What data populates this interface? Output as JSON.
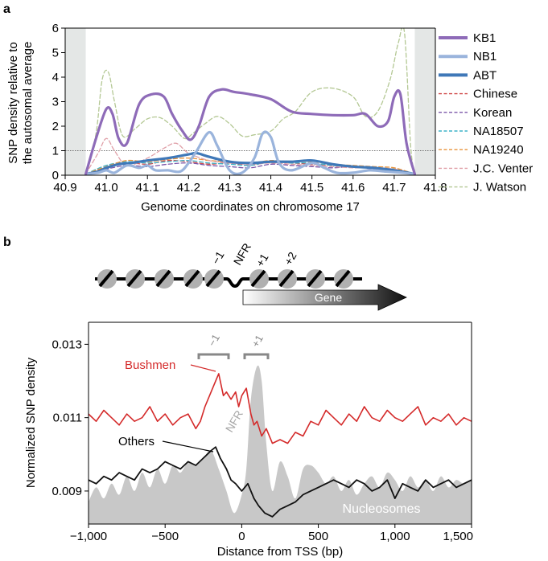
{
  "chart_data": [
    {
      "panel_label": "a",
      "type": "line",
      "xlabel": "Genome coordinates on chromosome 17",
      "ylabel_lines": [
        "SNP density relative to",
        "the autosomal average"
      ],
      "xlim": [
        40.9,
        41.8
      ],
      "ylim": [
        0,
        6
      ],
      "x_ticks": [
        "40.9",
        "41.0",
        "41.1",
        "41.2",
        "41.3",
        "41.4",
        "41.5",
        "41.6",
        "41.7",
        "41.8"
      ],
      "y_ticks": [
        "0",
        "1",
        "2",
        "3",
        "4",
        "5",
        "6"
      ],
      "reference_line": 1,
      "shaded_regions": [
        [
          40.9,
          40.95
        ],
        [
          41.75,
          41.8
        ]
      ],
      "legend_position": "right",
      "series": [
        {
          "name": "KB1",
          "color": "#8e6bb8",
          "style": "solid",
          "width": 3.2,
          "x": [
            40.95,
            40.975,
            41.0,
            41.015,
            41.03,
            41.05,
            41.08,
            41.11,
            41.14,
            41.16,
            41.185,
            41.205,
            41.225,
            41.25,
            41.28,
            41.31,
            41.35,
            41.4,
            41.45,
            41.5,
            41.55,
            41.6,
            41.63,
            41.66,
            41.685,
            41.7,
            41.715,
            41.73,
            41.75
          ],
          "y": [
            0.05,
            1.5,
            2.7,
            2.5,
            1.5,
            1.3,
            2.9,
            3.3,
            3.2,
            2.5,
            1.8,
            1.45,
            2.0,
            3.2,
            3.5,
            3.4,
            3.3,
            3.1,
            2.6,
            2.5,
            2.45,
            2.45,
            2.5,
            2.0,
            2.2,
            3.2,
            3.3,
            1.3,
            0.05
          ]
        },
        {
          "name": "NB1",
          "color": "#9ab4dc",
          "style": "solid",
          "width": 3.2,
          "x": [
            40.95,
            40.98,
            41.0,
            41.02,
            41.05,
            41.08,
            41.1,
            41.12,
            41.15,
            41.18,
            41.2,
            41.22,
            41.25,
            41.27,
            41.3,
            41.33,
            41.36,
            41.38,
            41.4,
            41.42,
            41.45,
            41.5,
            41.53,
            41.56,
            41.6,
            41.64,
            41.68,
            41.72,
            41.75
          ],
          "y": [
            0.05,
            0.1,
            0.2,
            0.1,
            0.4,
            0.3,
            0.4,
            0.2,
            0.2,
            0.15,
            0.5,
            1.0,
            1.75,
            1.2,
            0.2,
            0.1,
            0.7,
            1.7,
            1.55,
            0.5,
            0.2,
            0.5,
            0.3,
            0.1,
            0.1,
            0.2,
            0.15,
            0.1,
            0.05
          ]
        },
        {
          "name": "ABT",
          "color": "#3f78b8",
          "style": "solid",
          "width": 3.2,
          "x": [
            40.95,
            40.98,
            41.0,
            41.03,
            41.06,
            41.1,
            41.15,
            41.2,
            41.22,
            41.25,
            41.3,
            41.35,
            41.4,
            41.45,
            41.5,
            41.55,
            41.6,
            41.65,
            41.7,
            41.75
          ],
          "y": [
            0.05,
            0.15,
            0.3,
            0.45,
            0.5,
            0.6,
            0.7,
            0.85,
            0.9,
            0.75,
            0.55,
            0.5,
            0.55,
            0.55,
            0.6,
            0.45,
            0.35,
            0.3,
            0.2,
            0.05
          ]
        },
        {
          "name": "Chinese",
          "color": "#d04a4a",
          "style": "dashed",
          "width": 1.3,
          "x": [
            40.95,
            41.0,
            41.05,
            41.1,
            41.15,
            41.2,
            41.25,
            41.3,
            41.35,
            41.4,
            41.45,
            41.5,
            41.55,
            41.6,
            41.65,
            41.7,
            41.75
          ],
          "y": [
            0.05,
            0.3,
            0.5,
            0.45,
            0.6,
            0.55,
            0.45,
            0.5,
            0.4,
            0.55,
            0.5,
            0.45,
            0.4,
            0.35,
            0.3,
            0.25,
            0.05
          ]
        },
        {
          "name": "Korean",
          "color": "#7a55a8",
          "style": "dashed",
          "width": 1.3,
          "x": [
            40.95,
            41.0,
            41.05,
            41.1,
            41.15,
            41.2,
            41.25,
            41.3,
            41.35,
            41.4,
            41.45,
            41.5,
            41.55,
            41.6,
            41.65,
            41.7,
            41.75
          ],
          "y": [
            0.05,
            0.25,
            0.4,
            0.35,
            0.45,
            0.5,
            0.4,
            0.35,
            0.3,
            0.45,
            0.4,
            0.35,
            0.3,
            0.35,
            0.25,
            0.2,
            0.05
          ]
        },
        {
          "name": "NA18507",
          "color": "#3fb4c8",
          "style": "dashed",
          "width": 1.3,
          "x": [
            40.95,
            41.0,
            41.05,
            41.1,
            41.15,
            41.2,
            41.25,
            41.3,
            41.35,
            41.4,
            41.45,
            41.5,
            41.55,
            41.6,
            41.65,
            41.7,
            41.75
          ],
          "y": [
            0.05,
            0.4,
            0.55,
            0.5,
            0.55,
            0.6,
            0.5,
            0.45,
            0.4,
            0.55,
            0.5,
            0.5,
            0.4,
            0.35,
            0.3,
            0.25,
            0.05
          ]
        },
        {
          "name": "NA19240",
          "color": "#e8923a",
          "style": "dashed",
          "width": 1.3,
          "x": [
            40.95,
            41.0,
            41.05,
            41.1,
            41.15,
            41.2,
            41.25,
            41.3,
            41.35,
            41.4,
            41.45,
            41.5,
            41.55,
            41.6,
            41.65,
            41.7,
            41.75
          ],
          "y": [
            0.05,
            0.35,
            0.6,
            0.55,
            0.65,
            0.7,
            0.6,
            0.55,
            0.5,
            0.6,
            0.55,
            0.55,
            0.45,
            0.4,
            0.35,
            0.3,
            0.05
          ]
        },
        {
          "name": "J.C. Venter",
          "color": "#e0a0a8",
          "style": "dashed",
          "width": 1.3,
          "x": [
            40.95,
            40.98,
            41.0,
            41.02,
            41.05,
            41.1,
            41.14,
            41.17,
            41.2,
            41.25,
            41.3,
            41.35,
            41.4,
            41.45,
            41.5,
            41.55,
            41.6,
            41.65,
            41.7,
            41.75
          ],
          "y": [
            0.05,
            0.9,
            1.5,
            1.0,
            0.4,
            0.7,
            1.1,
            1.3,
            0.9,
            0.6,
            0.5,
            0.45,
            0.5,
            0.45,
            0.4,
            0.35,
            0.3,
            0.3,
            0.25,
            0.05
          ]
        },
        {
          "name": "J. Watson",
          "color": "#b4c894",
          "style": "dashed",
          "width": 1.3,
          "x": [
            40.95,
            40.975,
            40.99,
            41.005,
            41.02,
            41.04,
            41.07,
            41.1,
            41.13,
            41.16,
            41.19,
            41.21,
            41.24,
            41.27,
            41.3,
            41.33,
            41.36,
            41.4,
            41.43,
            41.46,
            41.5,
            41.55,
            41.6,
            41.63,
            41.66,
            41.69,
            41.71,
            41.725,
            41.74,
            41.75
          ],
          "y": [
            0.05,
            1.7,
            3.9,
            4.2,
            3.0,
            1.6,
            1.9,
            2.3,
            2.35,
            2.0,
            1.5,
            1.7,
            2.1,
            2.4,
            2.1,
            1.6,
            1.65,
            1.8,
            2.3,
            2.6,
            3.4,
            3.55,
            3.2,
            2.4,
            2.6,
            3.9,
            5.4,
            5.8,
            1.2,
            0.05
          ]
        }
      ]
    },
    {
      "panel_label": "b",
      "type": "line",
      "xlabel": "Distance from TSS (bp)",
      "ylabel": "Normalized SNP density",
      "xlim": [
        -1000,
        1500
      ],
      "ylim": [
        0.0081,
        0.0136
      ],
      "x_ticks": [
        "−1,000",
        "−500",
        "0",
        "500",
        "1,000",
        "1,500"
      ],
      "x_tick_values": [
        -1000,
        -500,
        0,
        500,
        1000,
        1500
      ],
      "y_ticks": [
        "0.009",
        "0.011",
        "0.013"
      ],
      "y_tick_values": [
        0.009,
        0.011,
        0.013
      ],
      "background_area": {
        "name": "Nucleosomes",
        "color": "#c8c8c8",
        "x": [
          -1000,
          -950,
          -900,
          -850,
          -800,
          -750,
          -700,
          -650,
          -600,
          -550,
          -500,
          -450,
          -400,
          -350,
          -300,
          -250,
          -200,
          -150,
          -100,
          -50,
          0,
          30,
          60,
          100,
          130,
          160,
          200,
          250,
          300,
          350,
          400,
          450,
          500,
          550,
          600,
          650,
          700,
          750,
          800,
          850,
          900,
          950,
          1000,
          1050,
          1100,
          1150,
          1200,
          1250,
          1300,
          1350,
          1400,
          1450,
          1500
        ],
        "y": [
          0.0087,
          0.0091,
          0.0088,
          0.0092,
          0.0089,
          0.0094,
          0.009,
          0.0095,
          0.0091,
          0.0096,
          0.0092,
          0.0097,
          0.0095,
          0.0098,
          0.0097,
          0.0099,
          0.0101,
          0.0096,
          0.009,
          0.0084,
          0.0089,
          0.0096,
          0.0115,
          0.0124,
          0.012,
          0.0103,
          0.009,
          0.0098,
          0.0094,
          0.0088,
          0.0096,
          0.0097,
          0.0095,
          0.0092,
          0.0094,
          0.009,
          0.0093,
          0.0089,
          0.0092,
          0.0094,
          0.0091,
          0.0095,
          0.0093,
          0.009,
          0.0094,
          0.0091,
          0.0093,
          0.009,
          0.0094,
          0.0091,
          0.0093,
          0.0092,
          0.0093
        ]
      },
      "series": [
        {
          "name": "Bushmen",
          "color": "#d42a2a",
          "width": 1.6,
          "x": [
            -1000,
            -950,
            -900,
            -850,
            -800,
            -750,
            -700,
            -650,
            -600,
            -550,
            -500,
            -450,
            -400,
            -350,
            -300,
            -270,
            -240,
            -200,
            -180,
            -150,
            -120,
            -100,
            -70,
            -40,
            -20,
            0,
            30,
            60,
            80,
            100,
            130,
            160,
            200,
            250,
            300,
            350,
            400,
            450,
            500,
            550,
            600,
            650,
            700,
            750,
            800,
            850,
            900,
            950,
            1000,
            1050,
            1100,
            1150,
            1200,
            1250,
            1300,
            1350,
            1400,
            1450,
            1500
          ],
          "y": [
            0.0111,
            0.0109,
            0.0112,
            0.011,
            0.0108,
            0.0111,
            0.0109,
            0.011,
            0.0113,
            0.0109,
            0.0111,
            0.0108,
            0.011,
            0.0111,
            0.0107,
            0.0109,
            0.0113,
            0.0117,
            0.0119,
            0.0122,
            0.0116,
            0.0117,
            0.0115,
            0.0117,
            0.0113,
            0.0116,
            0.0118,
            0.0111,
            0.0108,
            0.0109,
            0.0105,
            0.0107,
            0.0103,
            0.0104,
            0.0103,
            0.0106,
            0.0105,
            0.0109,
            0.0108,
            0.0112,
            0.011,
            0.0108,
            0.0111,
            0.0109,
            0.0113,
            0.011,
            0.0109,
            0.0112,
            0.011,
            0.0109,
            0.0111,
            0.0113,
            0.0108,
            0.011,
            0.0109,
            0.0111,
            0.0108,
            0.011,
            0.0109
          ]
        },
        {
          "name": "Others",
          "color": "#111111",
          "width": 1.8,
          "x": [
            -1000,
            -950,
            -900,
            -850,
            -800,
            -750,
            -700,
            -650,
            -600,
            -550,
            -500,
            -450,
            -400,
            -350,
            -300,
            -250,
            -200,
            -170,
            -140,
            -100,
            -70,
            -40,
            0,
            40,
            80,
            110,
            150,
            200,
            250,
            300,
            350,
            400,
            450,
            500,
            550,
            600,
            650,
            700,
            750,
            800,
            850,
            900,
            950,
            1000,
            1050,
            1100,
            1150,
            1200,
            1250,
            1300,
            1350,
            1400,
            1450,
            1500
          ],
          "y": [
            0.0093,
            0.0092,
            0.0094,
            0.0093,
            0.0095,
            0.0094,
            0.0093,
            0.0096,
            0.0095,
            0.0096,
            0.0098,
            0.0097,
            0.0096,
            0.0098,
            0.0097,
            0.0099,
            0.0101,
            0.0102,
            0.0099,
            0.0096,
            0.0093,
            0.0092,
            0.009,
            0.0092,
            0.0088,
            0.0086,
            0.0084,
            0.0083,
            0.0085,
            0.0086,
            0.0087,
            0.0089,
            0.009,
            0.0091,
            0.0092,
            0.0093,
            0.0092,
            0.0091,
            0.0093,
            0.0092,
            0.009,
            0.0091,
            0.0093,
            0.0088,
            0.0092,
            0.0091,
            0.009,
            0.0093,
            0.0091,
            0.0092,
            0.0093,
            0.0091,
            0.0092,
            0.0093
          ]
        }
      ],
      "annotations": {
        "bushmen_label": "Bushmen",
        "others_label": "Others",
        "nfr_label": "NFR",
        "nucleosomes_label": "Nucleosomes",
        "bracket_minus1": "−1",
        "bracket_plus1": "+1"
      },
      "schematic": {
        "labels": [
          "−1",
          "NFR",
          "+1",
          "+2"
        ],
        "gene_label": "Gene"
      }
    }
  ]
}
